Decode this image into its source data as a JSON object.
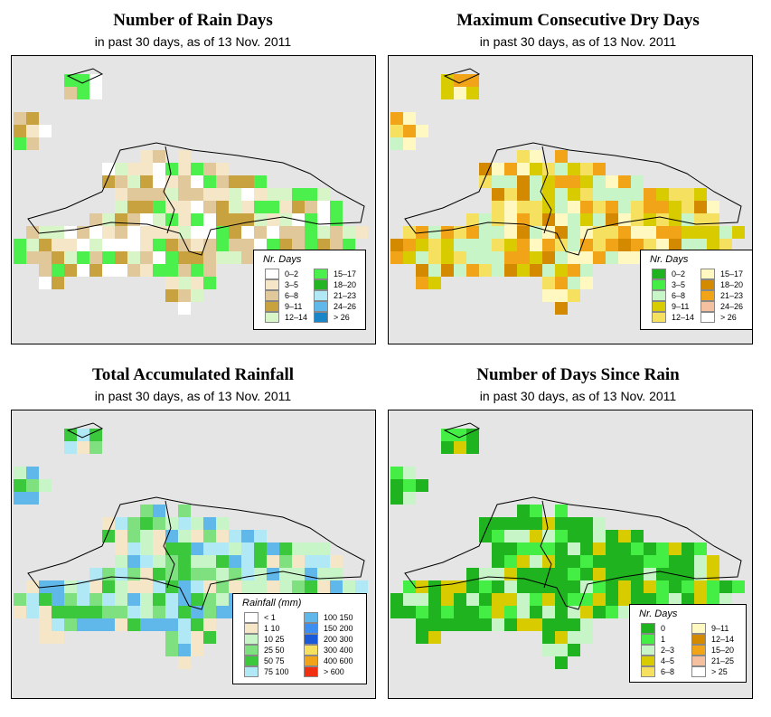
{
  "panels": [
    {
      "title": "Number of Rain Days",
      "subtitle": "in past 30 days, as of  13 Nov. 2011",
      "legend_title": "Nr. Days",
      "legend": [
        {
          "label": "0–2",
          "color": "#ffffff"
        },
        {
          "label": "3–5",
          "color": "#f5e6c8"
        },
        {
          "label": "6–8",
          "color": "#e0c89a"
        },
        {
          "label": "9–11",
          "color": "#c9a240"
        },
        {
          "label": "12–14",
          "color": "#d8f5c8"
        },
        {
          "label": "15–17",
          "color": "#4cf04c"
        },
        {
          "label": "18–20",
          "color": "#22b422"
        },
        {
          "label": "21–23",
          "color": "#b0e8f5"
        },
        {
          "label": "24–26",
          "color": "#60b8ea"
        },
        {
          "label": "> 26",
          "color": "#1a86c8"
        }
      ],
      "palette": [
        "#ffffff",
        "#f5e6c8",
        "#e0c89a",
        "#c9a240",
        "#d8f5c8",
        "#4cf04c"
      ]
    },
    {
      "title": "Maximum Consecutive Dry Days",
      "subtitle": "in past 30 days, as of  13 Nov. 2011",
      "legend_title": "Nr. Days",
      "legend": [
        {
          "label": "0–2",
          "color": "#1fb31f"
        },
        {
          "label": "3–5",
          "color": "#44ee44"
        },
        {
          "label": "6–8",
          "color": "#c8f5c8"
        },
        {
          "label": "9–11",
          "color": "#d8cc00"
        },
        {
          "label": "12–14",
          "color": "#f5e060"
        },
        {
          "label": "15–17",
          "color": "#fff8c0"
        },
        {
          "label": "18–20",
          "color": "#d48a00"
        },
        {
          "label": "21–23",
          "color": "#f2a418"
        },
        {
          "label": "24–26",
          "color": "#f5c0a0"
        },
        {
          "label": "> 26",
          "color": "#ffffff"
        }
      ],
      "palette": [
        "#d8cc00",
        "#fff8c0",
        "#c8f5c8",
        "#f5e060",
        "#f2a418",
        "#d48a00"
      ]
    },
    {
      "title": "Total Accumulated Rainfall",
      "subtitle": "in past 30 days, as of  13 Nov. 2011",
      "legend_title": "Rainfall (mm)",
      "legend": [
        {
          "label": "< 1",
          "color": "#ffffff"
        },
        {
          "label": "1    10",
          "color": "#f5e6c8"
        },
        {
          "label": "10    25",
          "color": "#c8f5c8"
        },
        {
          "label": "25    50",
          "color": "#7ee07e"
        },
        {
          "label": "50    75",
          "color": "#3cc83c"
        },
        {
          "label": "75  100",
          "color": "#b0e8f5"
        },
        {
          "label": "100  150",
          "color": "#60b8ea"
        },
        {
          "label": "150  200",
          "color": "#3c8ef0"
        },
        {
          "label": "200  300",
          "color": "#1a5ad8"
        },
        {
          "label": "300  400",
          "color": "#f5e060"
        },
        {
          "label": "400  600",
          "color": "#f2a418"
        },
        {
          "label": "> 600",
          "color": "#f03010"
        }
      ],
      "palette": [
        "#7ee07e",
        "#c8f5c8",
        "#3cc83c",
        "#f5e6c8",
        "#b0e8f5",
        "#60b8ea"
      ]
    },
    {
      "title": "Number of Days Since Rain",
      "subtitle": "in past 30 days, as of  13 Nov. 2011",
      "legend_title": "Nr. Days",
      "legend": [
        {
          "label": "0",
          "color": "#1fb31f"
        },
        {
          "label": "1",
          "color": "#44ee44"
        },
        {
          "label": "2–3",
          "color": "#c8f5c8"
        },
        {
          "label": "4–5",
          "color": "#d8cc00"
        },
        {
          "label": "6–8",
          "color": "#f5e060"
        },
        {
          "label": "9–11",
          "color": "#fff8c0"
        },
        {
          "label": "12–14",
          "color": "#d48a00"
        },
        {
          "label": "15–20",
          "color": "#f2a418"
        },
        {
          "label": "21–25",
          "color": "#f5c0a0"
        },
        {
          "label": "> 25",
          "color": "#ffffff"
        }
      ],
      "palette": [
        "#1fb31f",
        "#1fb31f",
        "#1fb31f",
        "#44ee44",
        "#c8f5c8",
        "#d8cc00"
      ]
    }
  ]
}
